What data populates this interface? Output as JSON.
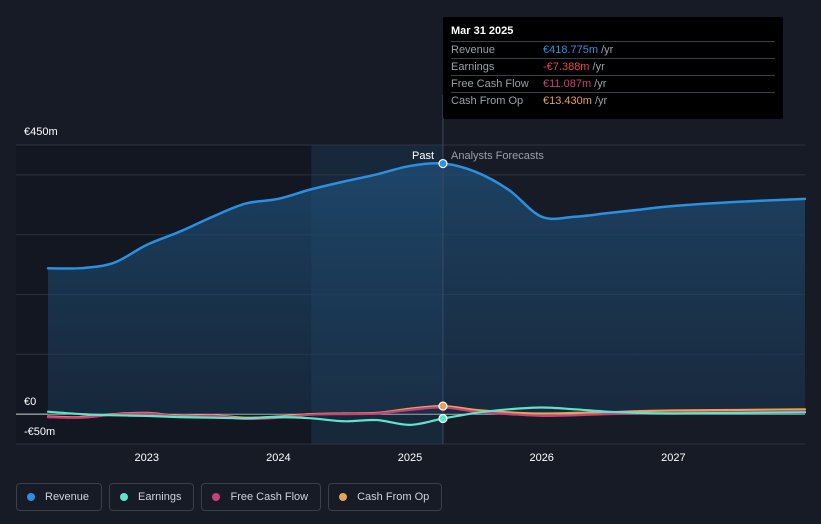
{
  "chart_data": {
    "type": "line",
    "currency": "€",
    "y_axis": {
      "min": -50,
      "max": 450,
      "tick_labels": [
        {
          "value": 450,
          "label": "€450m"
        },
        {
          "value": 0,
          "label": "€0"
        },
        {
          "value": -50,
          "label": "-€50m"
        }
      ]
    },
    "x_axis": {
      "min": 2022.25,
      "max": 2028.0,
      "tick_labels": [
        {
          "value": 2023,
          "label": "2023"
        },
        {
          "value": 2024,
          "label": "2024"
        },
        {
          "value": 2025,
          "label": "2025"
        },
        {
          "value": 2026,
          "label": "2026"
        },
        {
          "value": 2027,
          "label": "2027"
        }
      ]
    },
    "divider_x": 2025.25,
    "past_shade_from": 2024.25,
    "past_label": "Past",
    "forecast_label": "Analysts Forecasts",
    "series": [
      {
        "name": "Revenue",
        "color": "#2b90e0",
        "fill": true,
        "points": [
          [
            2022.25,
            244
          ],
          [
            2022.5,
            244
          ],
          [
            2022.75,
            253
          ],
          [
            2023.0,
            283
          ],
          [
            2023.25,
            305
          ],
          [
            2023.5,
            330
          ],
          [
            2023.75,
            352
          ],
          [
            2024.0,
            360
          ],
          [
            2024.25,
            376
          ],
          [
            2024.5,
            389
          ],
          [
            2024.75,
            401
          ],
          [
            2025.0,
            415
          ],
          [
            2025.25,
            419
          ],
          [
            2025.5,
            405
          ],
          [
            2025.75,
            375
          ],
          [
            2026.0,
            330
          ],
          [
            2026.25,
            330
          ],
          [
            2026.5,
            336
          ],
          [
            2026.75,
            342
          ],
          [
            2027.0,
            348
          ],
          [
            2027.5,
            355
          ],
          [
            2028.0,
            360
          ]
        ]
      },
      {
        "name": "Earnings",
        "color": "#5fe3cc",
        "fill": false,
        "points": [
          [
            2022.25,
            4
          ],
          [
            2022.5,
            0
          ],
          [
            2022.75,
            -2
          ],
          [
            2023.0,
            -3
          ],
          [
            2023.25,
            -5
          ],
          [
            2023.5,
            -6
          ],
          [
            2023.75,
            -7
          ],
          [
            2024.0,
            -5
          ],
          [
            2024.25,
            -7
          ],
          [
            2024.5,
            -12
          ],
          [
            2024.75,
            -10
          ],
          [
            2025.0,
            -18
          ],
          [
            2025.25,
            -7.4
          ],
          [
            2025.5,
            2
          ],
          [
            2025.75,
            8
          ],
          [
            2026.0,
            11
          ],
          [
            2026.25,
            8
          ],
          [
            2026.5,
            4
          ],
          [
            2026.75,
            2
          ],
          [
            2027.0,
            1
          ],
          [
            2027.5,
            2
          ],
          [
            2028.0,
            3
          ]
        ]
      },
      {
        "name": "Free Cash Flow",
        "color": "#c7427a",
        "fill": false,
        "points": [
          [
            2022.25,
            -5
          ],
          [
            2022.5,
            -6
          ],
          [
            2022.75,
            -1
          ],
          [
            2023.0,
            1
          ],
          [
            2023.25,
            -4
          ],
          [
            2023.5,
            -3
          ],
          [
            2023.75,
            -8
          ],
          [
            2024.0,
            -6
          ],
          [
            2024.25,
            -1
          ],
          [
            2024.5,
            0
          ],
          [
            2024.75,
            1
          ],
          [
            2025.0,
            7
          ],
          [
            2025.25,
            11.1
          ],
          [
            2025.5,
            4
          ],
          [
            2025.75,
            0
          ],
          [
            2026.0,
            -3
          ],
          [
            2026.25,
            -2
          ],
          [
            2026.5,
            0
          ],
          [
            2026.75,
            1
          ],
          [
            2027.0,
            2
          ],
          [
            2027.5,
            3
          ],
          [
            2028.0,
            4
          ]
        ]
      },
      {
        "name": "Cash From Op",
        "color": "#e8a15b",
        "fill": false,
        "points": [
          [
            2022.25,
            -4
          ],
          [
            2022.5,
            -5
          ],
          [
            2022.75,
            0
          ],
          [
            2023.0,
            2
          ],
          [
            2023.25,
            -3
          ],
          [
            2023.5,
            -2
          ],
          [
            2023.75,
            -6
          ],
          [
            2024.0,
            -4
          ],
          [
            2024.25,
            0
          ],
          [
            2024.5,
            1
          ],
          [
            2024.75,
            2
          ],
          [
            2025.0,
            9
          ],
          [
            2025.25,
            13.4
          ],
          [
            2025.5,
            7
          ],
          [
            2025.75,
            3
          ],
          [
            2026.0,
            1
          ],
          [
            2026.25,
            2
          ],
          [
            2026.5,
            3
          ],
          [
            2026.75,
            5
          ],
          [
            2027.0,
            6
          ],
          [
            2027.5,
            7
          ],
          [
            2028.0,
            8
          ]
        ]
      }
    ]
  },
  "tooltip": {
    "date": "Mar 31 2025",
    "rows": [
      {
        "label": "Revenue",
        "value": "€418.775m",
        "unit": " /yr",
        "color": "#2b90e0"
      },
      {
        "label": "Earnings",
        "value": "-€7.388m",
        "unit": " /yr",
        "color": "#e5484d"
      },
      {
        "label": "Free Cash Flow",
        "value": "€11.087m",
        "unit": " /yr",
        "color": "#c7427a"
      },
      {
        "label": "Cash From Op",
        "value": "€13.430m",
        "unit": " /yr",
        "color": "#e8a15b"
      }
    ]
  },
  "legend": [
    {
      "label": "Revenue",
      "color": "#2b90e0"
    },
    {
      "label": "Earnings",
      "color": "#5fe3cc"
    },
    {
      "label": "Free Cash Flow",
      "color": "#c7427a"
    },
    {
      "label": "Cash From Op",
      "color": "#e8a15b"
    }
  ]
}
